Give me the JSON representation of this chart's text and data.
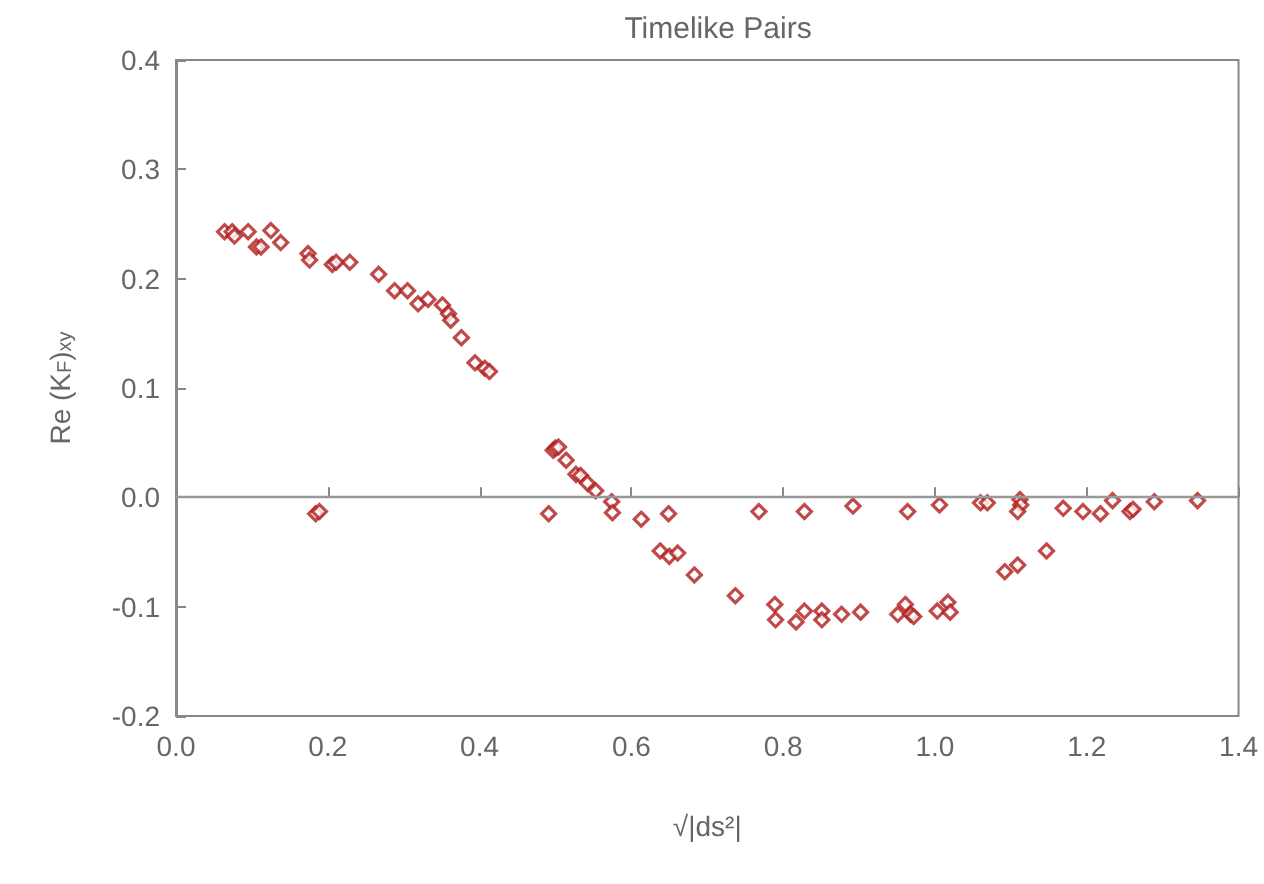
{
  "chart_data": {
    "type": "scatter",
    "title": "Timelike Pairs",
    "xlabel": "√|ds²|",
    "ylabel": "Re (K$_{F}$)$_{xy}$",
    "xlim": [
      0,
      1.4
    ],
    "xticks": [
      {
        "value": 0,
        "label": "0.0"
      },
      0.2,
      0.4,
      0.6,
      0.8,
      {
        "value": 1,
        "label": "1.0"
      },
      1.2,
      1.4
    ],
    "ylim": [
      -0.2,
      0.4
    ],
    "yticks": [
      -0.2,
      -0.1,
      {
        "value": 0,
        "label": "0.0"
      },
      0.1,
      0.2,
      0.3,
      0.4
    ],
    "grid": false,
    "marker": "diamond",
    "ref_lines": [
      {
        "axis": "y",
        "value": 0,
        "color": "#999999"
      }
    ],
    "series": [
      {
        "color": "#b01c1c",
        "x": [
          0.064,
          0.074,
          0.077,
          0.095,
          0.106,
          0.112,
          0.125,
          0.138,
          0.174,
          0.176,
          0.206,
          0.211,
          0.229,
          0.267,
          0.288,
          0.305,
          0.319,
          0.332,
          0.351,
          0.359,
          0.362,
          0.376,
          0.394,
          0.407,
          0.413,
          0.497,
          0.5,
          0.504,
          0.514,
          0.527,
          0.533,
          0.542,
          0.553,
          0.574,
          0.575,
          0.184,
          0.189,
          0.491,
          0.613,
          0.649,
          0.638,
          0.65,
          0.661,
          0.683,
          0.737,
          0.768,
          0.789,
          0.79,
          0.817,
          0.828,
          0.851,
          0.851,
          0.828,
          0.892,
          0.964,
          1.006,
          1.06,
          1.069,
          1.112,
          1.113,
          1.109,
          1.169,
          1.195,
          1.218,
          1.234,
          1.257,
          1.261,
          1.289,
          1.346,
          1.092,
          1.109,
          1.147,
          0.877,
          0.902,
          0.951,
          0.961,
          0.968,
          0.972,
          1.003,
          1.017,
          1.02
        ],
        "values": [
          0.243,
          0.243,
          0.239,
          0.243,
          0.229,
          0.229,
          0.244,
          0.233,
          0.223,
          0.217,
          0.213,
          0.215,
          0.215,
          0.204,
          0.189,
          0.189,
          0.177,
          0.181,
          0.176,
          0.168,
          0.162,
          0.146,
          0.123,
          0.118,
          0.115,
          0.043,
          0.045,
          0.046,
          0.034,
          0.021,
          0.02,
          0.013,
          0.006,
          -0.004,
          -0.014,
          -0.015,
          -0.013,
          -0.015,
          -0.02,
          -0.015,
          -0.049,
          -0.054,
          -0.051,
          -0.071,
          -0.09,
          -0.013,
          -0.098,
          -0.112,
          -0.114,
          -0.104,
          -0.104,
          -0.112,
          -0.013,
          -0.008,
          -0.013,
          -0.007,
          -0.005,
          -0.005,
          -0.002,
          -0.007,
          -0.013,
          -0.01,
          -0.013,
          -0.015,
          -0.003,
          -0.013,
          -0.011,
          -0.004,
          -0.003,
          -0.068,
          -0.062,
          -0.049,
          -0.107,
          -0.105,
          -0.107,
          -0.098,
          -0.107,
          -0.109,
          -0.104,
          -0.096,
          -0.105
        ]
      }
    ]
  }
}
